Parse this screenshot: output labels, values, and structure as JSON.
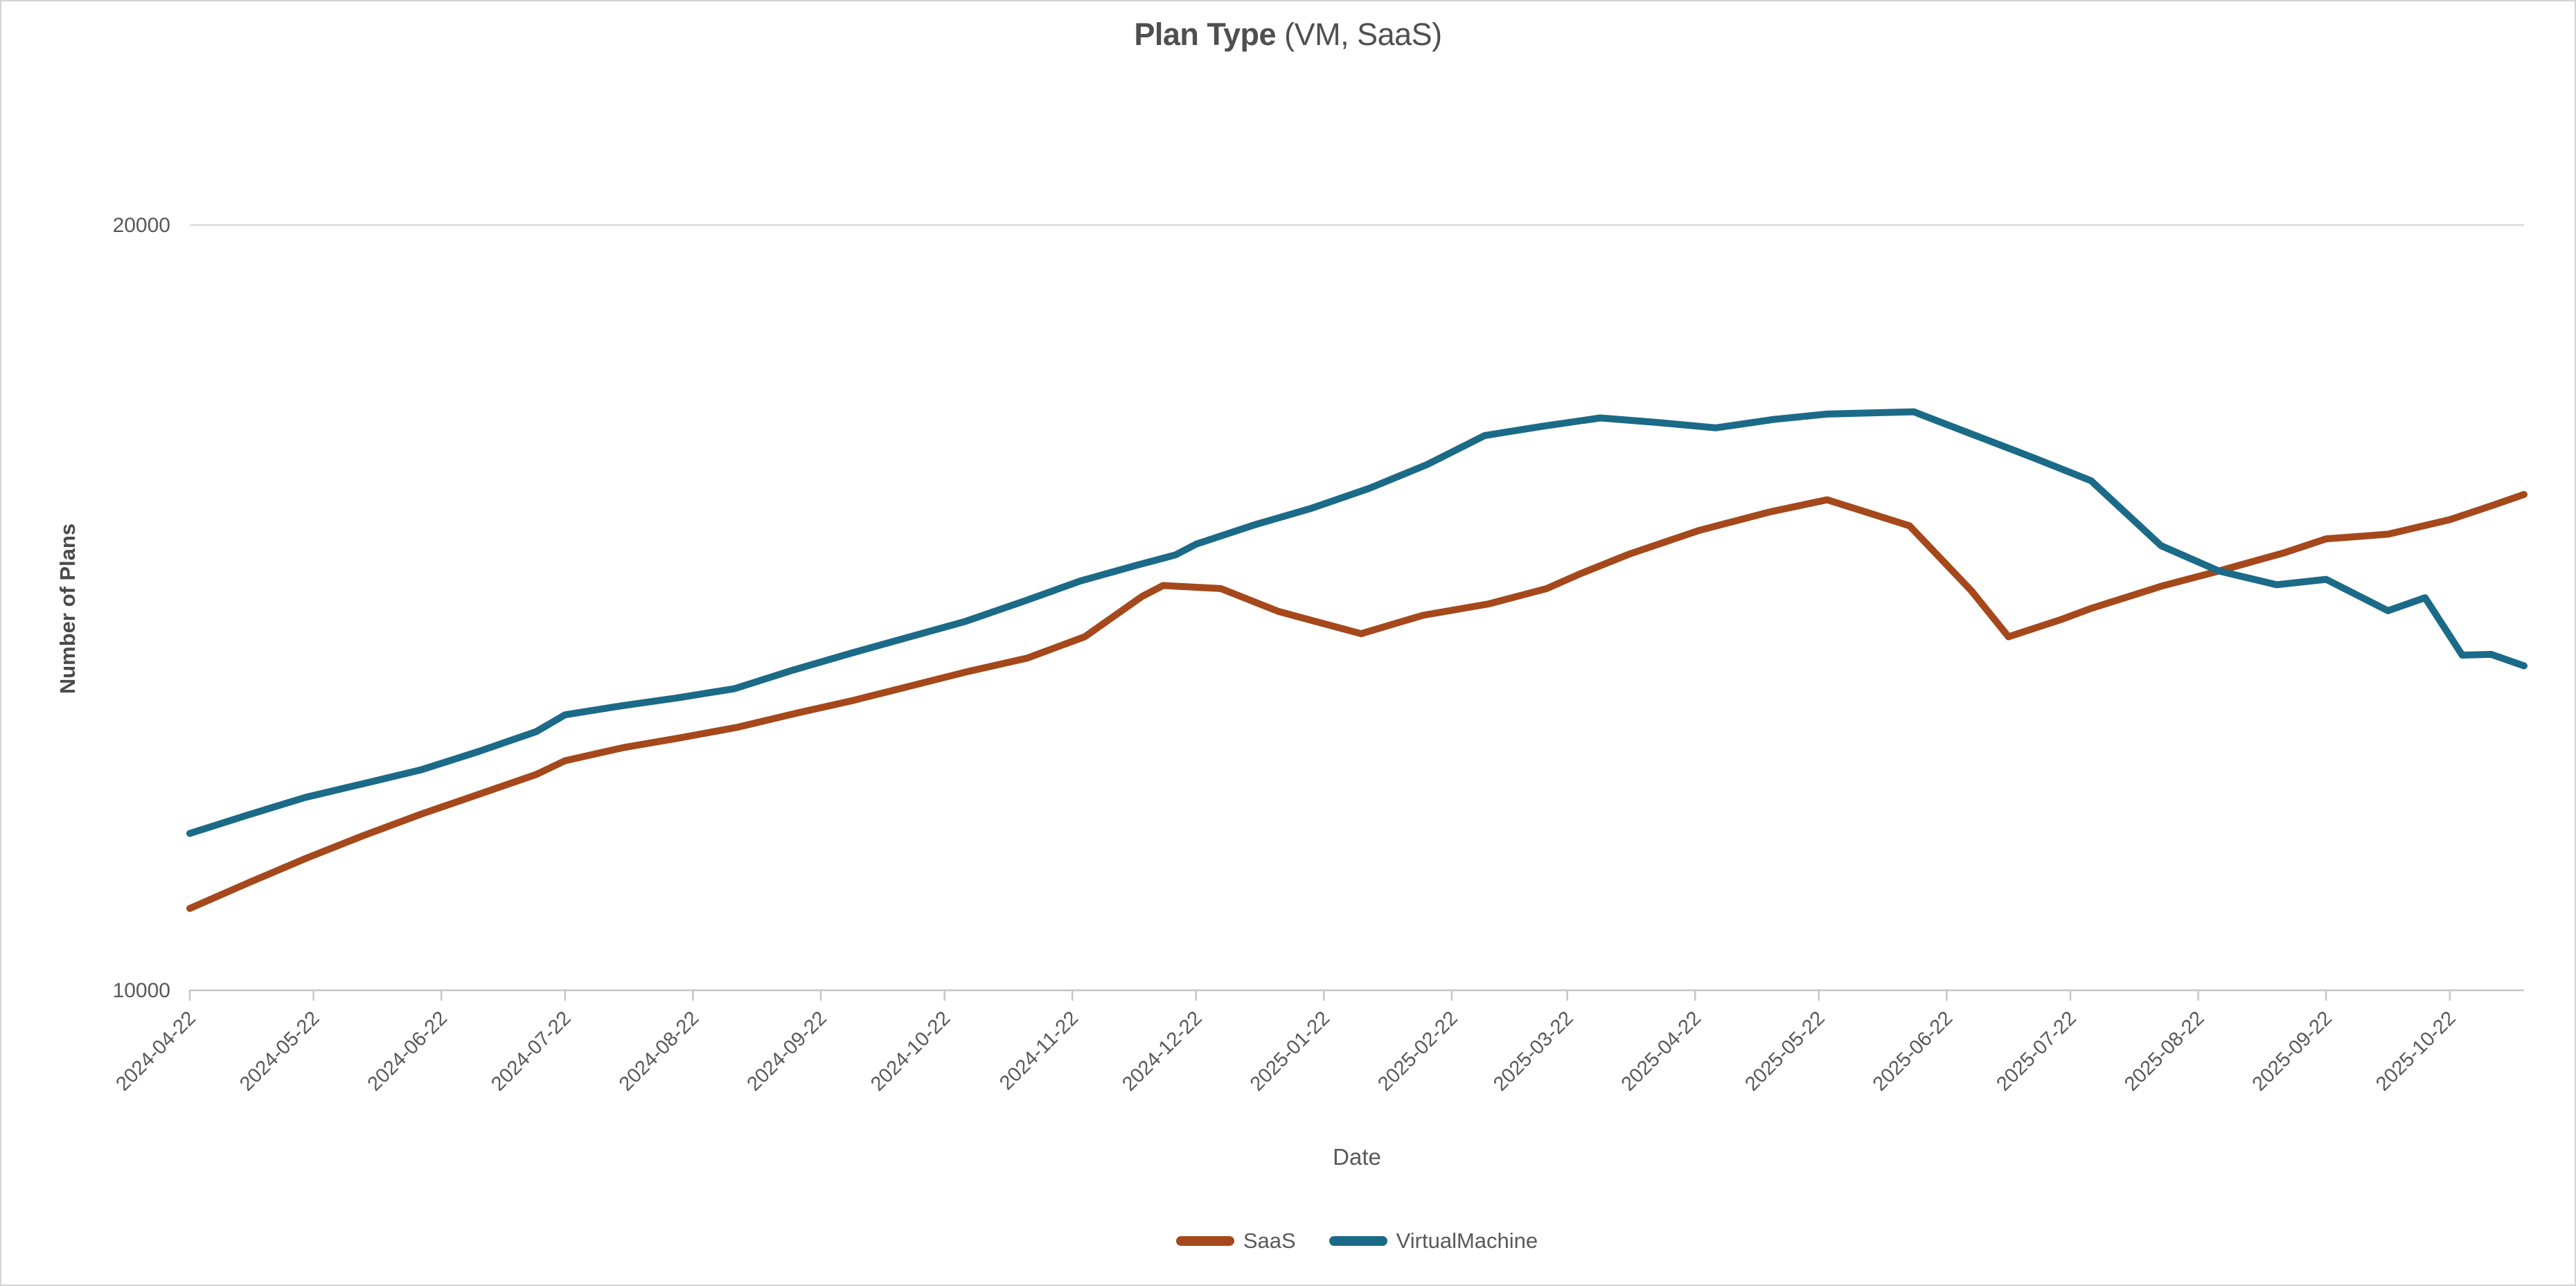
{
  "chart_data": {
    "type": "line",
    "title_bold": "Plan Type",
    "title_rest": " (VM, SaaS)",
    "xlabel": "Date",
    "ylabel": "Number of Plans",
    "ylim": [
      10000,
      20000
    ],
    "y_ticks": [
      {
        "label": "10000",
        "value": 10000
      },
      {
        "label": "20000",
        "value": 20000
      }
    ],
    "grid": "horizontal-top-only",
    "legend_position": "bottom-center",
    "x_domain": [
      "2024-04-22",
      "2025-11-09"
    ],
    "x_tick_dates": [
      "2024-04-22",
      "2024-05-22",
      "2024-06-22",
      "2024-07-22",
      "2024-08-22",
      "2024-09-22",
      "2024-10-22",
      "2024-11-22",
      "2024-12-22",
      "2025-01-22",
      "2025-02-22",
      "2025-03-22",
      "2025-04-22",
      "2025-05-22",
      "2025-06-22",
      "2025-07-22",
      "2025-08-22",
      "2025-09-22",
      "2025-10-22"
    ],
    "colors": {
      "saas": "#A5481B",
      "virtual_machine": "#1B6A88",
      "gridline": "#DBDBDB",
      "axis_line": "#C6C6C6",
      "tick_text": "#595959",
      "title_text": "#4F4F4F"
    },
    "series": [
      {
        "name": "SaaS",
        "color": "#A5481B",
        "points": [
          [
            "2024-04-22",
            11070
          ],
          [
            "2024-05-06",
            11400
          ],
          [
            "2024-05-20",
            11720
          ],
          [
            "2024-06-03",
            12020
          ],
          [
            "2024-06-17",
            12300
          ],
          [
            "2024-07-01",
            12560
          ],
          [
            "2024-07-15",
            12820
          ],
          [
            "2024-07-22",
            13000
          ],
          [
            "2024-08-05",
            13170
          ],
          [
            "2024-08-19",
            13300
          ],
          [
            "2024-09-02",
            13440
          ],
          [
            "2024-09-16",
            13620
          ],
          [
            "2024-09-30",
            13790
          ],
          [
            "2024-10-14",
            13980
          ],
          [
            "2024-10-28",
            14170
          ],
          [
            "2024-11-11",
            14340
          ],
          [
            "2024-11-25",
            14620
          ],
          [
            "2024-12-09",
            15150
          ],
          [
            "2024-12-14",
            15290
          ],
          [
            "2024-12-28",
            15250
          ],
          [
            "2025-01-11",
            14950
          ],
          [
            "2025-01-31",
            14660
          ],
          [
            "2025-02-15",
            14900
          ],
          [
            "2025-03-03",
            15050
          ],
          [
            "2025-03-17",
            15250
          ],
          [
            "2025-03-25",
            15440
          ],
          [
            "2025-04-06",
            15700
          ],
          [
            "2025-04-23",
            16010
          ],
          [
            "2025-05-10",
            16250
          ],
          [
            "2025-05-24",
            16410
          ],
          [
            "2025-06-13",
            16070
          ],
          [
            "2025-06-28",
            15220
          ],
          [
            "2025-07-07",
            14620
          ],
          [
            "2025-07-20",
            14850
          ],
          [
            "2025-07-27",
            14990
          ],
          [
            "2025-08-13",
            15280
          ],
          [
            "2025-08-27",
            15480
          ],
          [
            "2025-09-12",
            15720
          ],
          [
            "2025-09-22",
            15900
          ],
          [
            "2025-10-07",
            15960
          ],
          [
            "2025-10-22",
            16150
          ],
          [
            "2025-11-01",
            16330
          ],
          [
            "2025-11-09",
            16480
          ]
        ]
      },
      {
        "name": "VirtualMachine",
        "color": "#1B6A88",
        "points": [
          [
            "2024-04-22",
            12050
          ],
          [
            "2024-05-06",
            12290
          ],
          [
            "2024-05-20",
            12520
          ],
          [
            "2024-06-03",
            12700
          ],
          [
            "2024-06-17",
            12880
          ],
          [
            "2024-07-01",
            13120
          ],
          [
            "2024-07-15",
            13380
          ],
          [
            "2024-07-22",
            13600
          ],
          [
            "2024-08-05",
            13720
          ],
          [
            "2024-08-18",
            13820
          ],
          [
            "2024-09-01",
            13940
          ],
          [
            "2024-09-15",
            14180
          ],
          [
            "2024-09-29",
            14400
          ],
          [
            "2024-10-13",
            14610
          ],
          [
            "2024-10-27",
            14820
          ],
          [
            "2024-11-10",
            15080
          ],
          [
            "2024-11-24",
            15350
          ],
          [
            "2024-12-08",
            15560
          ],
          [
            "2024-12-17",
            15690
          ],
          [
            "2024-12-22",
            15830
          ],
          [
            "2025-01-05",
            16080
          ],
          [
            "2025-01-19",
            16300
          ],
          [
            "2025-02-02",
            16560
          ],
          [
            "2025-02-16",
            16870
          ],
          [
            "2025-03-02",
            17250
          ],
          [
            "2025-03-16",
            17370
          ],
          [
            "2025-03-30",
            17480
          ],
          [
            "2025-04-13",
            17420
          ],
          [
            "2025-04-27",
            17350
          ],
          [
            "2025-05-11",
            17460
          ],
          [
            "2025-05-24",
            17530
          ],
          [
            "2025-06-14",
            17560
          ],
          [
            "2025-06-29",
            17250
          ],
          [
            "2025-07-13",
            16960
          ],
          [
            "2025-07-27",
            16660
          ],
          [
            "2025-08-13",
            15810
          ],
          [
            "2025-08-27",
            15480
          ],
          [
            "2025-09-10",
            15300
          ],
          [
            "2025-09-22",
            15370
          ],
          [
            "2025-10-07",
            14960
          ],
          [
            "2025-10-16",
            15130
          ],
          [
            "2025-10-25",
            14380
          ],
          [
            "2025-11-01",
            14390
          ],
          [
            "2025-11-09",
            14240
          ]
        ]
      }
    ]
  }
}
